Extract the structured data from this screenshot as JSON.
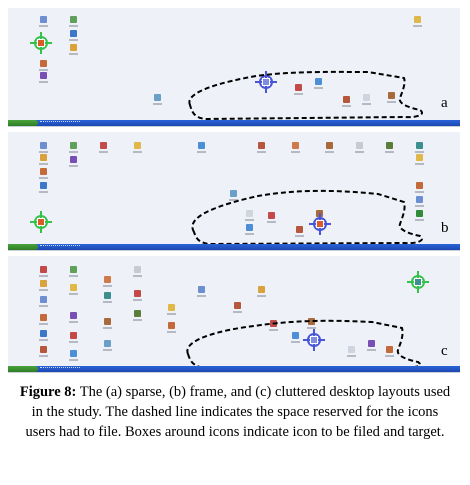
{
  "panels": [
    {
      "label": "a",
      "name": "sparse"
    },
    {
      "label": "b",
      "name": "frame"
    },
    {
      "label": "c",
      "name": "cluttered"
    }
  ],
  "caption": {
    "figure_label": "Figure 8:",
    "text": "The (a) sparse, (b) frame, and (c) cluttered desktop layouts used in the study. The dashed line indicates the space reserved for the icons users had to file. Boxes around icons indicate icon to be filed and target."
  },
  "colors": {
    "desktop": "#eef1f8",
    "taskbar": "#2a64d8",
    "start_button": "#49a33b",
    "source_marker": "#35c24a",
    "target_marker": "#4755d6"
  }
}
